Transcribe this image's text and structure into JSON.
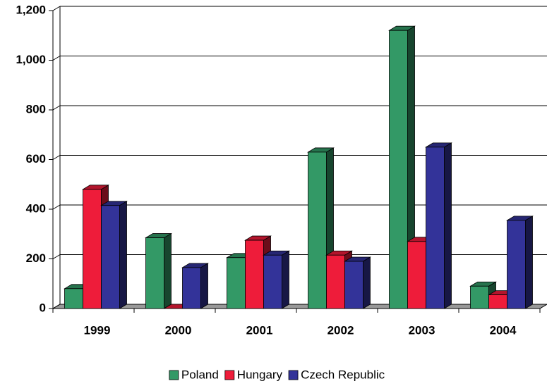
{
  "chart_data": {
    "type": "bar3d",
    "categories": [
      "1999",
      "2000",
      "2001",
      "2002",
      "2003",
      "2004"
    ],
    "series": [
      {
        "name": "Poland",
        "color": "#339966",
        "values": [
          80,
          285,
          205,
          630,
          1120,
          90
        ]
      },
      {
        "name": "Hungary",
        "color": "#ee1c3a",
        "values": [
          480,
          0,
          275,
          215,
          270,
          55
        ]
      },
      {
        "name": "Czech Republic",
        "color": "#333399",
        "values": [
          415,
          165,
          215,
          190,
          650,
          355
        ]
      }
    ],
    "ylim": [
      0,
      1200
    ],
    "yticks": [
      0,
      200,
      400,
      600,
      800,
      {
        "value": 1000,
        "label": "1,000"
      },
      {
        "value": 1200,
        "label": "1,200"
      }
    ],
    "grid": true,
    "legend": "bottom"
  }
}
